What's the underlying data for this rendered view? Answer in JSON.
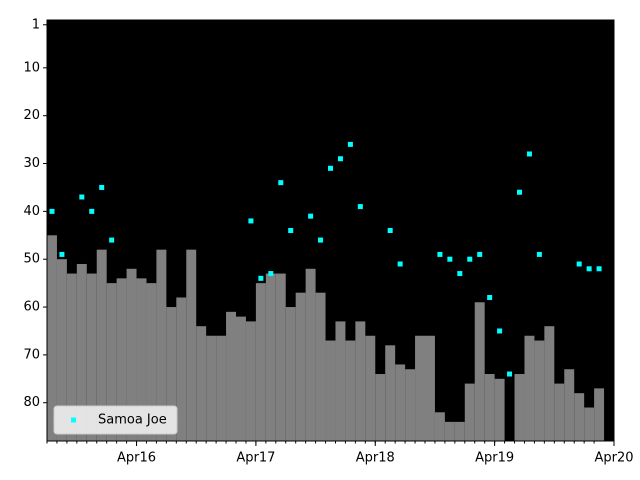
{
  "chart_data": {
    "type": "bar-scatter",
    "x": [
      "2015-07",
      "2015-08",
      "2015-09",
      "2015-10",
      "2015-11",
      "2015-12",
      "2016-01",
      "2016-02",
      "2016-03",
      "2016-04",
      "2016-05",
      "2016-06",
      "2016-07",
      "2016-08",
      "2016-09",
      "2016-10",
      "2016-11",
      "2016-12",
      "2017-01",
      "2017-02",
      "2017-03",
      "2017-04",
      "2017-05",
      "2017-06",
      "2017-07",
      "2017-08",
      "2017-09",
      "2017-10",
      "2017-11",
      "2017-12",
      "2018-01",
      "2018-02",
      "2018-03",
      "2018-04",
      "2018-05",
      "2018-06",
      "2018-07",
      "2018-08",
      "2018-09",
      "2018-10",
      "2018-11",
      "2018-12",
      "2019-01",
      "2019-02",
      "2019-03",
      "2019-04",
      "2019-05",
      "2019-06",
      "2019-07",
      "2019-08",
      "2019-09",
      "2019-10",
      "2019-11",
      "2019-12",
      "2020-01",
      "2020-02"
    ],
    "series": [
      {
        "type": "bar",
        "color": "#808080",
        "values": [
          45,
          50,
          53,
          51,
          53,
          48,
          55,
          54,
          52,
          54,
          55,
          48,
          60,
          58,
          48,
          64,
          66,
          66,
          61,
          62,
          63,
          55,
          53,
          53,
          60,
          57,
          52,
          57,
          67,
          63,
          67,
          63,
          66,
          74,
          68,
          72,
          73,
          66,
          66,
          82,
          84,
          84,
          76,
          59,
          74,
          75,
          null,
          74,
          66,
          67,
          64,
          76,
          73,
          78,
          81,
          77
        ]
      },
      {
        "type": "scatter",
        "name": "Samoa Joe",
        "color": "#00ffff",
        "values": [
          40,
          49,
          null,
          37,
          40,
          35,
          46,
          null,
          null,
          null,
          null,
          null,
          null,
          null,
          null,
          null,
          null,
          null,
          null,
          null,
          42,
          54,
          53,
          34,
          44,
          null,
          41,
          46,
          31,
          29,
          26,
          39,
          null,
          null,
          44,
          51,
          null,
          null,
          null,
          49,
          50,
          53,
          50,
          49,
          58,
          65,
          74,
          36,
          28,
          49,
          null,
          null,
          null,
          51,
          52,
          52
        ]
      }
    ],
    "xlim": [
      "2015-07",
      "2020-04"
    ],
    "xticks": [
      {
        "value": "2016-04",
        "label": "Apr16"
      },
      {
        "value": "2017-04",
        "label": "Apr17"
      },
      {
        "value": "2018-04",
        "label": "Apr18"
      },
      {
        "value": "2019-04",
        "label": "Apr19"
      },
      {
        "value": "2020-04",
        "label": "Apr20"
      }
    ],
    "ylim": [
      88,
      0
    ],
    "yticks": [
      1,
      10,
      20,
      30,
      40,
      50,
      60,
      70,
      80
    ],
    "grid": false,
    "legend": "lower left",
    "background": "#000000"
  }
}
